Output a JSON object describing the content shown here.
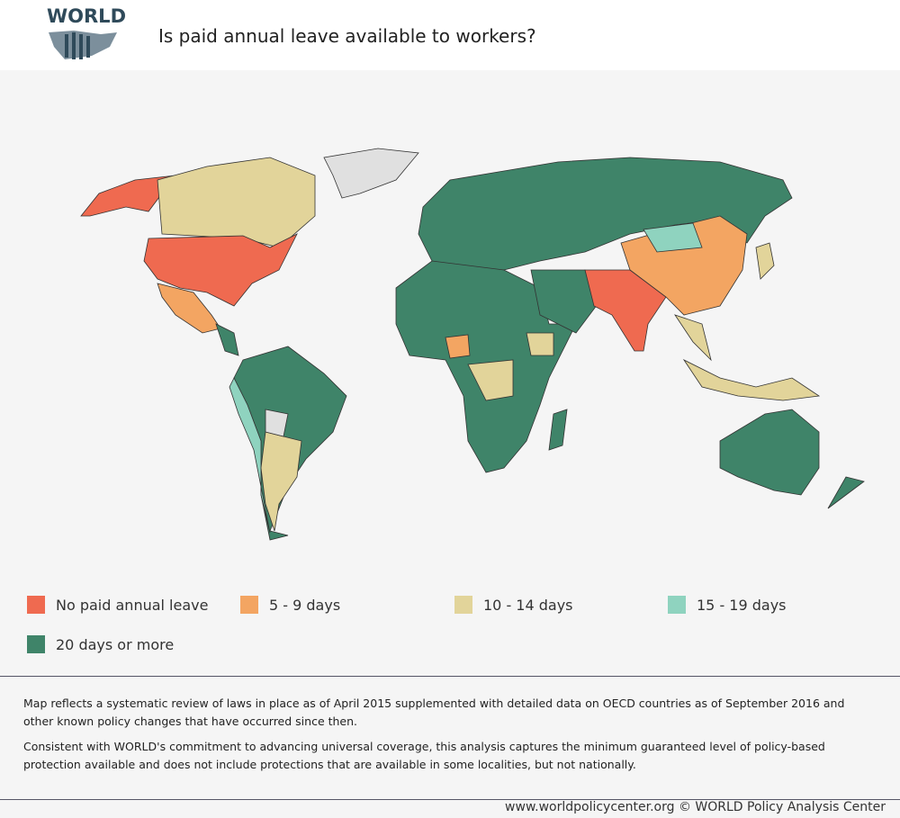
{
  "header": {
    "logo": "WORLD",
    "title": "Is paid annual leave available to workers?"
  },
  "legend": {
    "items": [
      {
        "label": "No paid annual leave",
        "color": "#ef6a50"
      },
      {
        "label": "5 - 9 days",
        "color": "#f3a562"
      },
      {
        "label": "10 - 14 days",
        "color": "#e2d49a"
      },
      {
        "label": "15 - 19 days",
        "color": "#8fd3bf"
      },
      {
        "label": "20 days or more",
        "color": "#3f8469"
      }
    ]
  },
  "notes": [
    "Map reflects a systematic review of laws in place as of April 2015 supplemented with detailed data on OECD countries as of September 2016 and other known policy changes that have occurred since then.",
    "Consistent with WORLD's commitment to advancing universal coverage, this analysis captures the minimum guaranteed level of policy-based protection available and does not include protections that are available in some localities, but not nationally."
  ],
  "footer": {
    "credit": "www.worldpolicycenter.org © WORLD Policy Analysis Center"
  }
}
